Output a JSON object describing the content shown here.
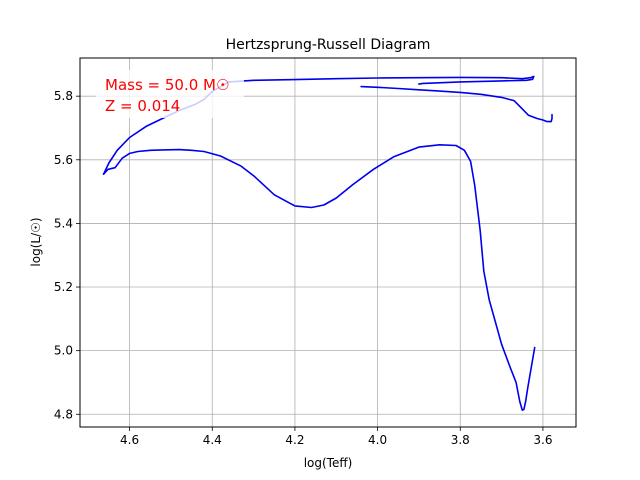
{
  "chart_data": {
    "type": "line",
    "title": "Hertzsprung-Russell Diagram",
    "xlabel": "log(Teff)",
    "ylabel": "log(L/☉)",
    "xlim": [
      4.72,
      3.52
    ],
    "ylim": [
      4.76,
      5.92
    ],
    "x_inverted": true,
    "grid": true,
    "xticks": [
      4.6,
      4.4,
      4.2,
      4.0,
      3.8,
      3.6
    ],
    "xtick_labels": [
      "4.6",
      "4.4",
      "4.2",
      "4.0",
      "3.8",
      "3.6"
    ],
    "yticks": [
      4.8,
      5.0,
      5.2,
      5.4,
      5.6,
      5.8
    ],
    "ytick_labels": [
      "4.8",
      "5.0",
      "5.2",
      "5.4",
      "5.6",
      "5.8"
    ],
    "annotations": [
      "Mass = 50.0 M☉",
      "Z = 0.014"
    ],
    "series": [
      {
        "color": "#0000ee",
        "x": [
          4.663,
          4.652,
          4.635,
          4.618,
          4.6,
          4.58,
          4.55,
          4.52,
          4.48,
          4.45,
          4.42,
          4.38,
          4.33,
          4.3,
          4.25,
          4.2,
          4.16,
          4.13,
          4.1,
          4.06,
          4.01,
          3.96,
          3.9,
          3.85,
          3.81,
          3.79,
          3.775,
          3.765,
          3.752,
          3.743,
          3.73,
          3.715,
          3.7,
          3.68,
          3.665,
          3.656,
          3.65,
          3.646,
          3.642,
          3.637,
          3.628,
          3.62
        ],
        "y": [
          5.555,
          5.57,
          5.575,
          5.605,
          5.62,
          5.626,
          5.63,
          5.631,
          5.632,
          5.63,
          5.626,
          5.612,
          5.58,
          5.55,
          5.49,
          5.455,
          5.45,
          5.458,
          5.48,
          5.522,
          5.57,
          5.61,
          5.64,
          5.647,
          5.645,
          5.63,
          5.595,
          5.52,
          5.38,
          5.25,
          5.16,
          5.09,
          5.02,
          4.95,
          4.9,
          4.84,
          4.813,
          4.815,
          4.84,
          4.88,
          4.95,
          5.01
        ]
      },
      {
        "color": "#0000ee",
        "x": [
          4.663,
          4.65,
          4.63,
          4.6,
          4.56,
          4.52,
          4.48,
          4.44,
          4.42,
          4.4,
          4.36,
          4.3,
          4.2,
          4.1,
          4.0,
          3.9,
          3.8,
          3.7,
          3.65,
          3.63,
          3.622,
          3.625,
          3.64,
          3.7,
          3.8,
          3.89,
          3.9
        ],
        "y": [
          5.555,
          5.59,
          5.63,
          5.67,
          5.705,
          5.73,
          5.755,
          5.775,
          5.79,
          5.815,
          5.845,
          5.85,
          5.852,
          5.855,
          5.857,
          5.858,
          5.859,
          5.858,
          5.855,
          5.858,
          5.862,
          5.853,
          5.85,
          5.848,
          5.845,
          5.84,
          5.838
        ]
      },
      {
        "color": "#0000ee",
        "x": [
          4.04,
          4.0,
          3.95,
          3.9,
          3.85,
          3.8,
          3.75,
          3.7,
          3.67,
          3.65,
          3.635,
          3.615,
          3.6,
          3.59,
          3.58,
          3.578,
          3.578
        ],
        "y": [
          5.83,
          5.828,
          5.824,
          5.82,
          5.816,
          5.812,
          5.806,
          5.796,
          5.786,
          5.76,
          5.74,
          5.73,
          5.725,
          5.72,
          5.72,
          5.73,
          5.742
        ]
      }
    ]
  }
}
